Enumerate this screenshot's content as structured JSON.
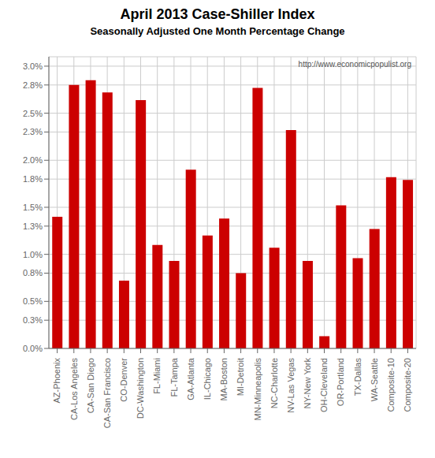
{
  "chart_data": {
    "type": "bar",
    "title": "April 2013 Case-Shiller Index",
    "subtitle": "Seasonally Adjusted One Month Percentage Change",
    "annotations": [
      "http://www.economicpopulist.org"
    ],
    "categories": [
      "AZ-Phoenix",
      "CA-Los Angeles",
      "CA-San Diego",
      "CA-San Francisco",
      "CO-Denver",
      "DC-Washington",
      "FL-Miami",
      "FL-Tampa",
      "GA-Atlanta",
      "IL-Chicago",
      "MA-Boston",
      "MI-Detroit",
      "MN-Minneapolis",
      "NC-Charlotte",
      "NV-Las Vegas",
      "NY-New York",
      "OH-Cleveland",
      "OR-Portland",
      "TX-Dallas",
      "WA-Seattle",
      "Composite-10",
      "Composite-20"
    ],
    "values": [
      1.4,
      2.8,
      2.85,
      2.72,
      0.72,
      2.64,
      1.1,
      0.93,
      1.9,
      1.2,
      1.38,
      0.8,
      2.77,
      1.07,
      2.32,
      0.93,
      0.13,
      1.52,
      0.96,
      1.27,
      1.82,
      1.79
    ],
    "color": "#cc0000",
    "ylim": [
      0,
      3.1
    ],
    "yticks": [
      {
        "value": 0,
        "label": "0.0%"
      },
      {
        "value": 0.3,
        "label": "0.3%"
      },
      {
        "value": 0.5,
        "label": "0.5%"
      },
      {
        "value": 0.8,
        "label": "0.8%"
      },
      {
        "value": 1.0,
        "label": "1.0%"
      },
      {
        "value": 1.3,
        "label": "1.3%"
      },
      {
        "value": 1.5,
        "label": "1.5%"
      },
      {
        "value": 1.8,
        "label": "1.8%"
      },
      {
        "value": 2.0,
        "label": "2.0%"
      },
      {
        "value": 2.3,
        "label": "2.3%"
      },
      {
        "value": 2.5,
        "label": "2.5%"
      },
      {
        "value": 2.8,
        "label": "2.8%"
      },
      {
        "value": 3.0,
        "label": "3.0%"
      }
    ],
    "grid": true
  }
}
